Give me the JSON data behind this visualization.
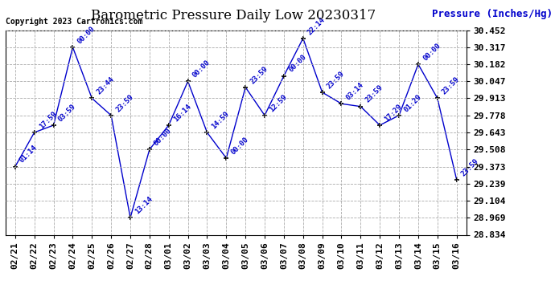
{
  "title": "Barometric Pressure Daily Low 20230317",
  "ylabel": "Pressure (Inches/Hg)",
  "copyright": "Copyright 2023 Cartronics.com",
  "line_color": "#0000cc",
  "background_color": "#ffffff",
  "grid_color": "#aaaaaa",
  "ylim": [
    28.834,
    30.452
  ],
  "yticks": [
    28.834,
    28.969,
    29.104,
    29.239,
    29.373,
    29.508,
    29.643,
    29.778,
    29.913,
    30.047,
    30.182,
    30.317,
    30.452
  ],
  "dates": [
    "02/21",
    "02/22",
    "02/23",
    "02/24",
    "02/25",
    "02/26",
    "02/27",
    "02/28",
    "03/01",
    "03/02",
    "03/03",
    "03/04",
    "03/05",
    "03/06",
    "03/07",
    "03/08",
    "03/09",
    "03/10",
    "03/11",
    "03/12",
    "03/13",
    "03/14",
    "03/15",
    "03/16"
  ],
  "values": [
    29.373,
    29.643,
    29.7,
    30.317,
    29.913,
    29.778,
    28.969,
    29.508,
    29.7,
    30.047,
    29.643,
    29.44,
    30.0,
    29.778,
    30.09,
    30.387,
    29.96,
    29.87,
    29.848,
    29.7,
    29.778,
    30.182,
    29.913,
    29.27
  ],
  "time_labels": [
    "01:14",
    "17:59",
    "03:59",
    "00:00",
    "23:44",
    "23:59",
    "13:14",
    "00:00",
    "16:14",
    "00:00",
    "14:59",
    "00:00",
    "23:59",
    "12:59",
    "00:00",
    "22:14",
    "23:59",
    "03:14",
    "23:59",
    "17:29",
    "01:29",
    "00:00",
    "23:59",
    "23:59"
  ],
  "title_fontsize": 12,
  "ylabel_fontsize": 9,
  "tick_fontsize": 8,
  "label_fontsize": 6.5,
  "copyright_fontsize": 7
}
